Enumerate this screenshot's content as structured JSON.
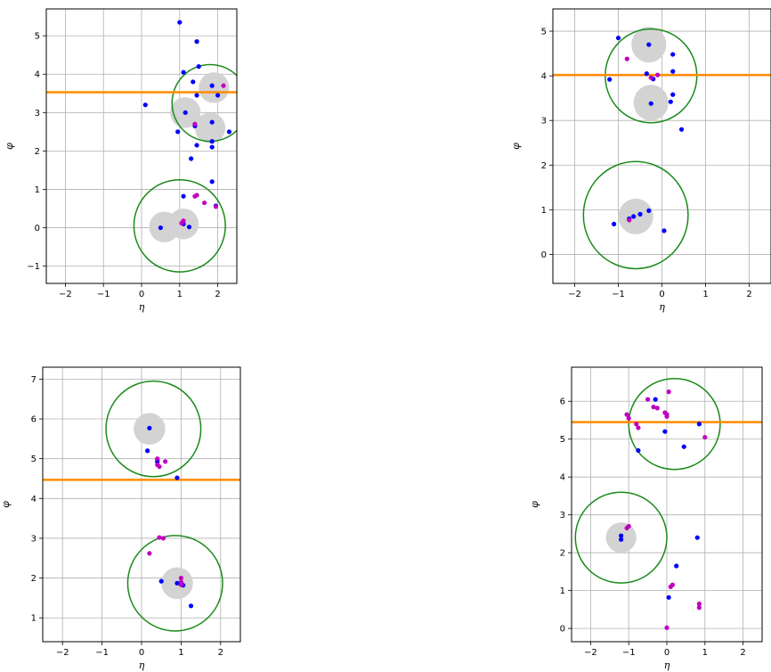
{
  "colors": {
    "jet": "#0000ff",
    "particle": "#c000c0",
    "circle": "#1a8a1a",
    "line": "#ff8c00",
    "blob": "#d3d3d3",
    "grid": "#b0b0b0"
  },
  "chart_data": [
    {
      "type": "scatter",
      "xlabel": "η",
      "ylabel": "φ",
      "xlim": [
        -2.5,
        2.5
      ],
      "ylim": [
        -1.45,
        5.7
      ],
      "xticks": [
        -2,
        -1,
        0,
        1,
        2
      ],
      "yticks": [
        -1,
        0,
        1,
        2,
        3,
        4,
        5
      ],
      "xtick_labels": [
        "−2",
        "−1",
        "0",
        "1",
        "2"
      ],
      "ytick_labels": [
        "−1",
        "0",
        "1",
        "2",
        "3",
        "4",
        "5"
      ],
      "grid": true,
      "hline": 3.53,
      "circles": [
        {
          "x": 1.8,
          "y": 3.25,
          "r": 1.0
        },
        {
          "x": 1.0,
          "y": 0.05,
          "r": 1.2
        }
      ],
      "blobs": [
        {
          "x": 1.9,
          "y": 3.65
        },
        {
          "x": 1.15,
          "y": 3.0
        },
        {
          "x": 1.8,
          "y": 2.6
        },
        {
          "x": 0.6,
          "y": 0.02
        },
        {
          "x": 1.1,
          "y": 0.1
        }
      ],
      "points_blue": [
        [
          1.0,
          5.35
        ],
        [
          1.45,
          4.85
        ],
        [
          1.5,
          4.2
        ],
        [
          1.1,
          4.05
        ],
        [
          1.35,
          3.8
        ],
        [
          1.85,
          3.7
        ],
        [
          2.0,
          3.45
        ],
        [
          1.45,
          3.45
        ],
        [
          0.1,
          3.2
        ],
        [
          1.15,
          3.0
        ],
        [
          1.4,
          2.65
        ],
        [
          1.85,
          2.75
        ],
        [
          0.95,
          2.5
        ],
        [
          2.3,
          2.5
        ],
        [
          1.45,
          2.15
        ],
        [
          1.85,
          2.25
        ],
        [
          1.85,
          2.1
        ],
        [
          1.3,
          1.8
        ],
        [
          1.85,
          1.2
        ],
        [
          1.1,
          0.82
        ],
        [
          1.95,
          0.57
        ],
        [
          0.5,
          0.0
        ],
        [
          1.1,
          0.1
        ],
        [
          1.25,
          0.02
        ]
      ],
      "points_magenta": [
        [
          2.15,
          3.7
        ],
        [
          1.4,
          2.7
        ],
        [
          1.4,
          0.82
        ],
        [
          1.45,
          0.85
        ],
        [
          1.65,
          0.65
        ],
        [
          1.95,
          0.55
        ],
        [
          1.05,
          0.12
        ],
        [
          1.1,
          0.18
        ]
      ]
    },
    {
      "type": "scatter",
      "xlabel": "η",
      "ylabel": "φ",
      "xlim": [
        -2.5,
        2.5
      ],
      "ylim": [
        -0.65,
        5.5
      ],
      "xticks": [
        -2,
        -1,
        0,
        1,
        2
      ],
      "yticks": [
        0,
        1,
        2,
        3,
        4,
        5
      ],
      "xtick_labels": [
        "−2",
        "−1",
        "0",
        "1",
        "2"
      ],
      "ytick_labels": [
        "0",
        "1",
        "2",
        "3",
        "4",
        "5"
      ],
      "grid": true,
      "hline": 4.02,
      "circles": [
        {
          "x": -0.25,
          "y": 4.0,
          "r": 1.05
        },
        {
          "x": -0.6,
          "y": 0.88,
          "r": 1.2
        }
      ],
      "blobs": [
        {
          "x": -0.3,
          "y": 4.7
        },
        {
          "x": -0.25,
          "y": 3.4
        },
        {
          "x": -0.6,
          "y": 0.85
        }
      ],
      "points_blue": [
        [
          -1.0,
          4.85
        ],
        [
          -0.3,
          4.7
        ],
        [
          0.25,
          4.48
        ],
        [
          -1.2,
          3.92
        ],
        [
          0.25,
          4.1
        ],
        [
          -0.35,
          4.05
        ],
        [
          -0.2,
          3.93
        ],
        [
          0.25,
          3.58
        ],
        [
          0.2,
          3.42
        ],
        [
          -0.25,
          3.38
        ],
        [
          0.45,
          2.8
        ],
        [
          -0.3,
          0.98
        ],
        [
          -0.5,
          0.9
        ],
        [
          -0.65,
          0.85
        ],
        [
          -0.75,
          0.8
        ],
        [
          -1.1,
          0.68
        ],
        [
          0.05,
          0.53
        ]
      ],
      "points_magenta": [
        [
          -0.8,
          4.38
        ],
        [
          -0.1,
          4.02
        ],
        [
          -0.25,
          3.96
        ],
        [
          -0.75,
          0.77
        ]
      ]
    },
    {
      "type": "scatter",
      "xlabel": "η",
      "ylabel": "φ",
      "xlim": [
        -2.5,
        2.5
      ],
      "ylim": [
        0.4,
        7.3
      ],
      "xticks": [
        -2,
        -1,
        0,
        1,
        2
      ],
      "yticks": [
        1,
        2,
        3,
        4,
        5,
        6,
        7
      ],
      "xtick_labels": [
        "−2",
        "−1",
        "0",
        "1",
        "2"
      ],
      "ytick_labels": [
        "1",
        "2",
        "3",
        "4",
        "5",
        "6",
        "7"
      ],
      "grid": true,
      "hline": 4.47,
      "circles": [
        {
          "x": 0.3,
          "y": 5.75,
          "r": 1.2
        },
        {
          "x": 0.85,
          "y": 1.87,
          "r": 1.2
        }
      ],
      "blobs": [
        {
          "x": 0.2,
          "y": 5.75
        },
        {
          "x": 0.9,
          "y": 1.87
        }
      ],
      "points_blue": [
        [
          0.2,
          5.77
        ],
        [
          0.15,
          5.2
        ],
        [
          0.4,
          4.97
        ],
        [
          0.4,
          4.92
        ],
        [
          0.9,
          4.52
        ],
        [
          0.5,
          1.92
        ],
        [
          0.9,
          1.87
        ],
        [
          1.05,
          1.82
        ],
        [
          1.25,
          1.3
        ]
      ],
      "points_magenta": [
        [
          0.4,
          5.0
        ],
        [
          0.4,
          4.85
        ],
        [
          0.45,
          4.8
        ],
        [
          0.6,
          4.93
        ],
        [
          0.45,
          3.02
        ],
        [
          0.55,
          3.0
        ],
        [
          0.2,
          2.62
        ],
        [
          1.0,
          2.0
        ],
        [
          1.0,
          1.9
        ],
        [
          1.0,
          1.83
        ]
      ]
    },
    {
      "type": "scatter",
      "xlabel": "η",
      "ylabel": "φ",
      "xlim": [
        -2.5,
        2.5
      ],
      "ylim": [
        -0.35,
        6.9
      ],
      "xticks": [
        -2,
        -1,
        0,
        1,
        2
      ],
      "yticks": [
        0,
        1,
        2,
        3,
        4,
        5,
        6
      ],
      "xtick_labels": [
        "−2",
        "−1",
        "0",
        "1",
        "2"
      ],
      "ytick_labels": [
        "0",
        "1",
        "2",
        "3",
        "4",
        "5",
        "6"
      ],
      "grid": true,
      "hline": 5.45,
      "circles": [
        {
          "x": 0.2,
          "y": 5.4,
          "r": 1.2
        },
        {
          "x": -1.2,
          "y": 2.4,
          "r": 1.2
        }
      ],
      "blobs": [
        {
          "x": -1.2,
          "y": 2.4
        }
      ],
      "points_blue": [
        [
          -0.3,
          6.05
        ],
        [
          -0.05,
          5.2
        ],
        [
          0.85,
          5.4
        ],
        [
          0.45,
          4.8
        ],
        [
          -0.75,
          4.7
        ],
        [
          -1.2,
          2.45
        ],
        [
          -1.2,
          2.35
        ],
        [
          0.8,
          2.4
        ],
        [
          0.25,
          1.65
        ],
        [
          0.05,
          0.82
        ]
      ],
      "points_magenta": [
        [
          -0.5,
          6.05
        ],
        [
          0.05,
          6.25
        ],
        [
          -0.35,
          5.85
        ],
        [
          -0.25,
          5.82
        ],
        [
          0.0,
          5.65
        ],
        [
          0.0,
          5.6
        ],
        [
          -1.05,
          5.65
        ],
        [
          -1.0,
          5.55
        ],
        [
          -0.8,
          5.4
        ],
        [
          -0.75,
          5.3
        ],
        [
          -0.05,
          5.7
        ],
        [
          1.0,
          5.05
        ],
        [
          -1.05,
          2.65
        ],
        [
          -1.0,
          2.7
        ],
        [
          0.15,
          1.15
        ],
        [
          0.1,
          1.1
        ],
        [
          0.85,
          0.65
        ],
        [
          0.85,
          0.55
        ],
        [
          0.0,
          0.02
        ]
      ]
    }
  ]
}
